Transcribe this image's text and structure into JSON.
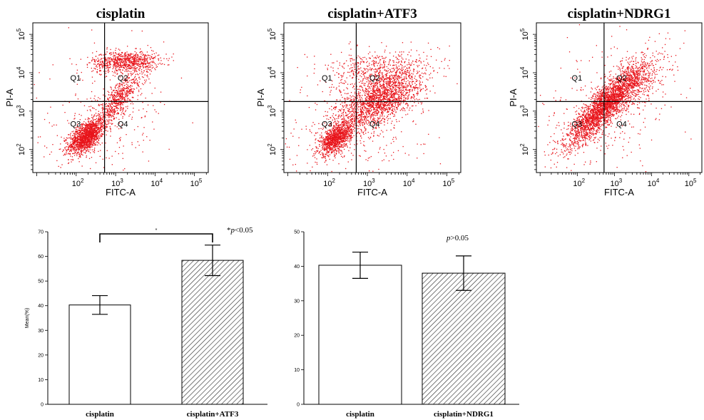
{
  "chart_data": [
    {
      "type": "scatter",
      "title": "cisplatin",
      "xlabel": "FITC-A",
      "ylabel": "PI-A",
      "scale": "log",
      "xlim": [
        0.9,
        5.35
      ],
      "ylim": [
        1.4,
        5.3
      ],
      "x_ticks": [
        "10^2",
        "10^3",
        "10^4",
        "10^5"
      ],
      "y_ticks": [
        "10^2",
        "10^3",
        "10^4",
        "10^5"
      ],
      "gate_x": 2.72,
      "gate_y": 3.25,
      "quadrants": [
        "Q1",
        "Q2",
        "Q3",
        "Q4"
      ],
      "color": "#e8141b"
    },
    {
      "type": "scatter",
      "title": "cisplatin+ATF3",
      "xlabel": "FITC-A",
      "ylabel": "PI-A",
      "scale": "log",
      "xlim": [
        0.9,
        5.35
      ],
      "ylim": [
        1.4,
        5.3
      ],
      "x_ticks": [
        "10^2",
        "10^3",
        "10^4",
        "10^5"
      ],
      "y_ticks": [
        "10^2",
        "10^3",
        "10^4",
        "10^5"
      ],
      "gate_x": 2.72,
      "gate_y": 3.25,
      "quadrants": [
        "Q1",
        "Q2",
        "Q3",
        "Q4"
      ],
      "color": "#e8141b"
    },
    {
      "type": "scatter",
      "title": "cisplatin+NDRG1",
      "xlabel": "FITC-A",
      "ylabel": "PI-A",
      "scale": "log",
      "xlim": [
        0.9,
        5.35
      ],
      "ylim": [
        1.4,
        5.3
      ],
      "x_ticks": [
        "10^2",
        "10^3",
        "10^4",
        "10^5"
      ],
      "y_ticks": [
        "10^2",
        "10^3",
        "10^4",
        "10^5"
      ],
      "gate_x": 2.72,
      "gate_y": 3.25,
      "quadrants": [
        "Q1",
        "Q2",
        "Q3",
        "Q4"
      ],
      "color": "#e8141b"
    },
    {
      "type": "bar",
      "categories": [
        "cisplatin",
        "cisplatin+ATF3"
      ],
      "values": [
        40.3,
        58.4
      ],
      "errors": [
        3.8,
        6.2
      ],
      "patterns": [
        "none",
        "hatch"
      ],
      "ylabel": "Mean(%)",
      "ylim": [
        0,
        70
      ],
      "y_ticks": [
        0,
        10,
        20,
        30,
        40,
        50,
        60,
        70
      ],
      "significance": {
        "marker": "*",
        "text": "*p<0.05",
        "text_parts": [
          "*",
          "p",
          "<0.05"
        ]
      }
    },
    {
      "type": "bar",
      "categories": [
        "cisplatin",
        "cisplatin+NDRG1"
      ],
      "values": [
        40.3,
        38.0
      ],
      "errors": [
        3.8,
        5.0
      ],
      "patterns": [
        "none",
        "hatch"
      ],
      "ylabel": "",
      "ylim": [
        0,
        50
      ],
      "y_ticks": [
        0,
        10,
        20,
        30,
        40,
        50
      ],
      "significance": {
        "text": "p>0.05",
        "text_parts": [
          "",
          "p",
          ">0.05"
        ]
      }
    }
  ]
}
